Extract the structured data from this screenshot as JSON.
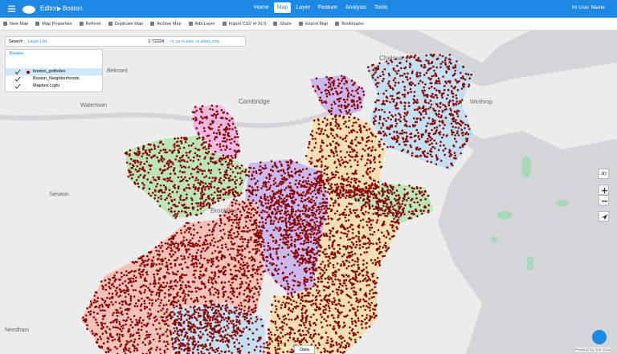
{
  "header": {
    "app": "Editor",
    "map_name": "Boston",
    "nav": [
      "Home",
      "Map",
      "Layer",
      "Feature",
      "Analysis",
      "Tools"
    ],
    "user": "Hi User Name"
  },
  "toolbar": [
    "New Map",
    "Map Properties",
    "Refresh",
    "Duplicate Map",
    "Archive Map",
    "Add Layer",
    "Import CSV or XLS",
    "Share",
    "Export Map",
    "Bookmarks"
  ],
  "map_tools": {
    "search": "Search",
    "layer_list": "Layer List",
    "scale": "1:72224",
    "coordinates": "-71.11179.4465, 42.30611.2209"
  },
  "layers": {
    "group": "Boston",
    "items": [
      "boston_potholes",
      "Boston_Neighborhoods",
      "Mapbox Light"
    ]
  },
  "map_labels": [
    "Belmont",
    "Cambridge",
    "Watertown",
    "Chelsea",
    "Winthrop",
    "Newton",
    "Brookline",
    "Needham"
  ],
  "controls": {
    "view3d": "3D"
  },
  "footer": {
    "data_tab": "Data",
    "credit": "Powered by GIS Cloud"
  }
}
